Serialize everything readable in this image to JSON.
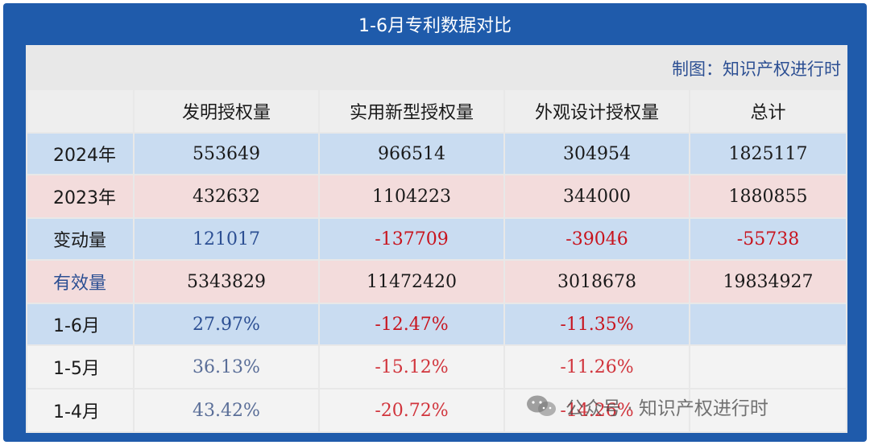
{
  "title": "1-6月专利数据对比",
  "credit": "制图：知识产权进行时",
  "headers": [
    "发明授权量",
    "实用新型授权量",
    "外观设计授权量",
    "总计"
  ],
  "rows": [
    {
      "label": "2024年",
      "values": [
        "553649",
        "966514",
        "304954",
        "1825117"
      ]
    },
    {
      "label": "2023年",
      "values": [
        "432632",
        "1104223",
        "344000",
        "1880855"
      ]
    },
    {
      "label": "变动量",
      "values": [
        "121017",
        "-137709",
        "-39046",
        "-55738"
      ]
    },
    {
      "label": "有效量",
      "values": [
        "5343829",
        "11472420",
        "3018678",
        "19834927"
      ]
    },
    {
      "label": "1-6月",
      "values": [
        "27.97%",
        "-12.47%",
        "-11.35%",
        ""
      ]
    },
    {
      "label": "1-5月",
      "values": [
        "36.13%",
        "-15.12%",
        "-11.26%",
        ""
      ]
    },
    {
      "label": "1-4月",
      "values": [
        "43.42%",
        "-20.72%",
        "-14.26%",
        ""
      ]
    }
  ],
  "watermark": {
    "text": "公众号 · 知识产权进行时",
    "icon": "wechat-icon"
  }
}
